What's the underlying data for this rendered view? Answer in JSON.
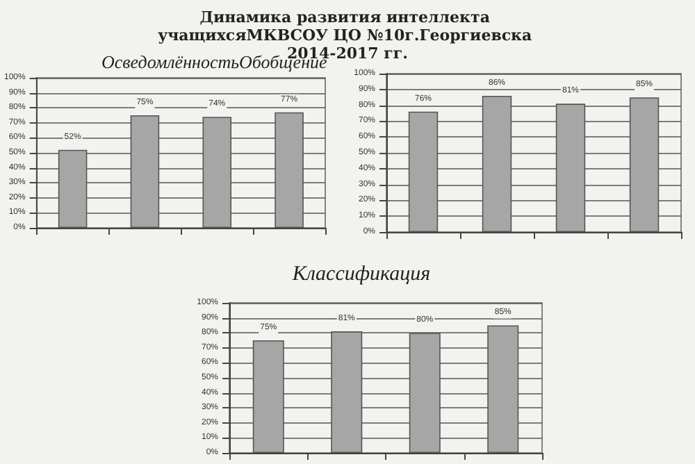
{
  "chart_data": [
    {
      "type": "bar",
      "title": "Динамика развития интеллекта учащихсяМКВСОУ ЦО №10г.Георгиевска 2014-2017 гг.",
      "subtitle": "ОсведомлённостьОбобщение",
      "categories": [
        null,
        null,
        null,
        null
      ],
      "values": [
        52,
        75,
        74,
        77
      ],
      "value_labels": [
        "52%",
        "75%",
        "74%",
        "77%"
      ],
      "color": "#a6a6a6",
      "ylim": [
        0,
        100
      ],
      "yticks": [
        {
          "value": 0,
          "label": "0%"
        },
        {
          "value": 10,
          "label": "10%"
        },
        {
          "value": 20,
          "label": "20%"
        },
        {
          "value": 30,
          "label": "30%"
        },
        {
          "value": 40,
          "label": "40%"
        },
        {
          "value": 50,
          "label": "50%"
        },
        {
          "value": 60,
          "label": "60%"
        },
        {
          "value": 70,
          "label": "70%"
        },
        {
          "value": 80,
          "label": "80%"
        },
        {
          "value": 90,
          "label": "90%"
        },
        {
          "value": 100,
          "label": "100%"
        }
      ],
      "grid": "y"
    },
    {
      "type": "bar",
      "categories": [
        null,
        null,
        null,
        null
      ],
      "values": [
        76,
        86,
        81,
        85
      ],
      "value_labels": [
        "76%",
        "86%",
        "81%",
        "85%"
      ],
      "color": "#a6a6a6",
      "ylim": [
        0,
        100
      ],
      "yticks": [
        {
          "value": 0,
          "label": "0%"
        },
        {
          "value": 10,
          "label": "10%"
        },
        {
          "value": 20,
          "label": "20%"
        },
        {
          "value": 30,
          "label": "30%"
        },
        {
          "value": 40,
          "label": "40%"
        },
        {
          "value": 50,
          "label": "50%"
        },
        {
          "value": 60,
          "label": "60%"
        },
        {
          "value": 70,
          "label": "70%"
        },
        {
          "value": 80,
          "label": "80%"
        },
        {
          "value": 90,
          "label": "90%"
        },
        {
          "value": 100,
          "label": "100%"
        }
      ],
      "grid": "y"
    },
    {
      "type": "bar",
      "title": "Классификация",
      "categories": [
        null,
        null,
        null,
        null
      ],
      "values": [
        75,
        81,
        80,
        85
      ],
      "value_labels": [
        "75%",
        "81%",
        "80%",
        "85%"
      ],
      "color": "#a6a6a6",
      "ylim": [
        0,
        100
      ],
      "yticks": [
        {
          "value": 0,
          "label": "0%"
        },
        {
          "value": 10,
          "label": "10%"
        },
        {
          "value": 20,
          "label": "20%"
        },
        {
          "value": 30,
          "label": "30%"
        },
        {
          "value": 40,
          "label": "40%"
        },
        {
          "value": 50,
          "label": "50%"
        },
        {
          "value": 60,
          "label": "60%"
        },
        {
          "value": 70,
          "label": "70%"
        },
        {
          "value": 80,
          "label": "80%"
        },
        {
          "value": 90,
          "label": "90%"
        },
        {
          "value": 100,
          "label": "100%"
        }
      ],
      "grid": "y"
    }
  ]
}
